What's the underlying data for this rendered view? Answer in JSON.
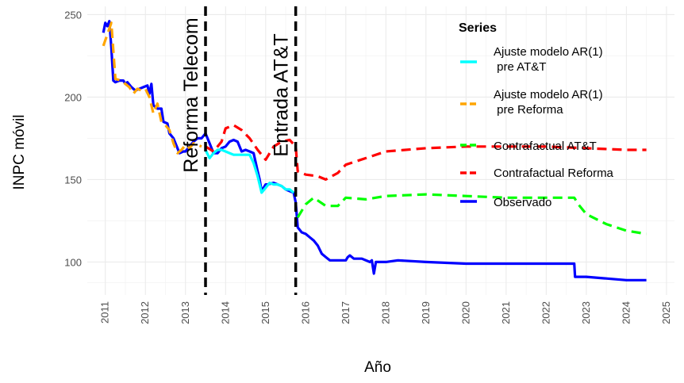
{
  "chart_data": {
    "type": "line",
    "xlabel": "Año",
    "ylabel": "INPC móvil",
    "xlim": [
      2010.55,
      2025.2
    ],
    "ylim": [
      80,
      255
    ],
    "x_ticks": [
      2011,
      2012,
      2013,
      2014,
      2015,
      2016,
      2017,
      2018,
      2019,
      2020,
      2021,
      2022,
      2023,
      2024,
      2025
    ],
    "x_tick_labels": [
      "2011",
      "2012",
      "2013",
      "2014",
      "2015",
      "2016",
      "2017",
      "2018",
      "2019",
      "2020",
      "2021",
      "2022",
      "2023",
      "2024",
      "2025"
    ],
    "y_ticks": [
      100,
      150,
      200,
      250
    ],
    "y_tick_labels": [
      "100",
      "150",
      "200",
      "250"
    ],
    "grid": true,
    "legend": {
      "title": "Series",
      "placement": "top-right inside"
    },
    "vlines": [
      {
        "x": 2013.5,
        "label": "Reforma Telecom"
      },
      {
        "x": 2015.75,
        "label": "Entrada AT&T"
      }
    ],
    "series": [
      {
        "name": "Ajuste modelo AR(1)\n pre AT&T",
        "color": "#00FFFF",
        "dash": "solid",
        "x": [
          2013.5,
          2013.6,
          2013.7,
          2013.8,
          2013.9,
          2014.0,
          2014.1,
          2014.2,
          2014.3,
          2014.4,
          2014.5,
          2014.6,
          2014.7,
          2014.8,
          2014.9,
          2015.0,
          2015.1,
          2015.2,
          2015.3,
          2015.4,
          2015.5,
          2015.6,
          2015.7
        ],
        "values": [
          168,
          163,
          166,
          168,
          168,
          167,
          166,
          165,
          165,
          165,
          165,
          165,
          160,
          152,
          142,
          145,
          148,
          147,
          147,
          146,
          144,
          144,
          142
        ]
      },
      {
        "name": "Ajuste modelo AR(1)\n pre Reforma",
        "color": "#FFA500",
        "dash": "dashed",
        "x": [
          2010.95,
          2011.05,
          2011.15,
          2011.25,
          2011.4,
          2011.6,
          2011.7,
          2011.8,
          2011.9,
          2012.0,
          2012.1,
          2012.2,
          2012.3,
          2012.4,
          2012.5,
          2012.6,
          2012.7,
          2012.8,
          2012.9,
          2013.0,
          2013.1,
          2013.2,
          2013.3,
          2013.4
        ],
        "values": [
          231,
          238,
          245,
          211,
          210,
          206,
          202,
          205,
          204,
          205,
          200,
          190,
          196,
          185,
          183,
          180,
          172,
          166,
          168,
          171,
          169,
          172,
          171,
          170
        ]
      },
      {
        "name": "Contrafactual AT&T",
        "color": "#00FF00",
        "dash": "dashed",
        "x": [
          2015.8,
          2015.9,
          2016.0,
          2016.2,
          2016.5,
          2016.8,
          2017.0,
          2017.5,
          2018.0,
          2019.0,
          2020.0,
          2021.0,
          2022.0,
          2022.7,
          2022.8,
          2023.0,
          2023.5,
          2024.0,
          2024.5
        ],
        "values": [
          127,
          131,
          135,
          139,
          134,
          134,
          139,
          138,
          140,
          141,
          140,
          139,
          139,
          139,
          135,
          129,
          123,
          119,
          117
        ]
      },
      {
        "name": "Contrafactual Reforma",
        "color": "#FF0000",
        "dash": "dashed",
        "x": [
          2013.5,
          2013.7,
          2013.9,
          2014.0,
          2014.2,
          2014.4,
          2014.6,
          2014.8,
          2015.0,
          2015.2,
          2015.4,
          2015.6,
          2015.75,
          2015.8,
          2016.0,
          2016.3,
          2016.5,
          2016.8,
          2017.0,
          2017.5,
          2018.0,
          2019.0,
          2020.0,
          2021.0,
          2022.0,
          2023.0,
          2024.0,
          2024.5
        ],
        "values": [
          170,
          167,
          173,
          181,
          183,
          180,
          175,
          168,
          162,
          170,
          173,
          174,
          170,
          155,
          153,
          152,
          150,
          154,
          159,
          163,
          167,
          169,
          170,
          170,
          170,
          169,
          168,
          168
        ]
      },
      {
        "name": "Observado",
        "color": "#0000FF",
        "dash": "solid",
        "x": [
          2010.95,
          2011.0,
          2011.05,
          2011.1,
          2011.15,
          2011.2,
          2011.25,
          2011.35,
          2011.45,
          2011.5,
          2011.55,
          2011.65,
          2011.75,
          2011.85,
          2011.95,
          2012.05,
          2012.1,
          2012.15,
          2012.2,
          2012.3,
          2012.4,
          2012.45,
          2012.55,
          2012.6,
          2012.7,
          2012.75,
          2012.85,
          2012.95,
          2013.0,
          2013.1,
          2013.2,
          2013.3,
          2013.4,
          2013.5,
          2013.6,
          2013.7,
          2013.8,
          2013.9,
          2014.0,
          2014.1,
          2014.2,
          2014.3,
          2014.4,
          2014.5,
          2014.6,
          2014.7,
          2014.8,
          2014.85,
          2014.9,
          2015.0,
          2015.05,
          2015.2,
          2015.3,
          2015.4,
          2015.5,
          2015.6,
          2015.7,
          2015.75,
          2015.8,
          2015.9,
          2016.0,
          2016.1,
          2016.2,
          2016.3,
          2016.4,
          2016.5,
          2016.6,
          2016.8,
          2017.0,
          2017.05,
          2017.1,
          2017.2,
          2017.4,
          2017.6,
          2017.65,
          2017.7,
          2017.75,
          2017.8,
          2018.0,
          2018.3,
          2019.0,
          2020.0,
          2021.0,
          2022.0,
          2022.7,
          2022.72,
          2023.0,
          2023.5,
          2024.0,
          2024.5
        ],
        "values": [
          239,
          245,
          243,
          246,
          230,
          210,
          209,
          210,
          210,
          208,
          209,
          206,
          204,
          205,
          206,
          207,
          202,
          208,
          195,
          193,
          193,
          185,
          184,
          178,
          175,
          172,
          166,
          167,
          167,
          170,
          173,
          175,
          175,
          178,
          172,
          166,
          166,
          169,
          170,
          173,
          174,
          173,
          167,
          168,
          167,
          166,
          155,
          150,
          143,
          147,
          147,
          148,
          147,
          146,
          144,
          143,
          142,
          136,
          121,
          118,
          117,
          115,
          113,
          110,
          105,
          103,
          101,
          101,
          101,
          103,
          104,
          102,
          102,
          100,
          101,
          93,
          100,
          100,
          100,
          101,
          100,
          99,
          99,
          99,
          99,
          91,
          91,
          90,
          89,
          89
        ]
      }
    ]
  }
}
